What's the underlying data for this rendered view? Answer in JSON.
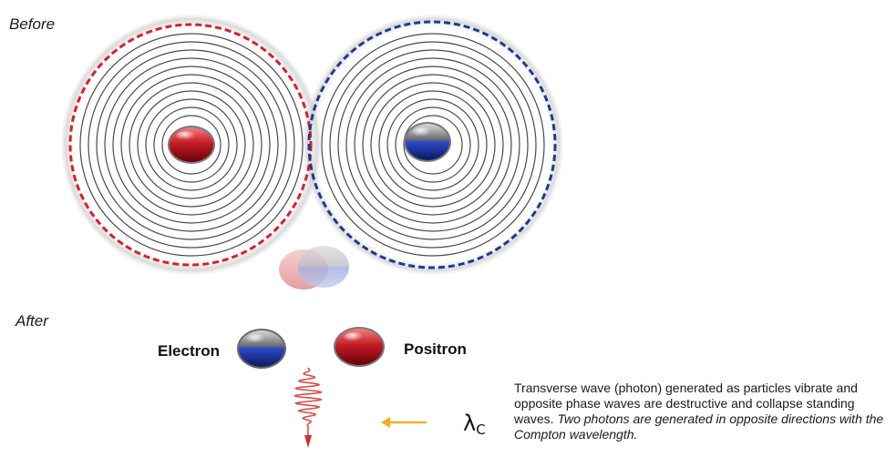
{
  "labels": {
    "before": "Before",
    "after": "After",
    "electron": "Electron",
    "positron": "Positron",
    "lambda_symbol": "λ",
    "lambda_subscript": "C"
  },
  "caption": {
    "plain": "Transverse wave (photon) generated as particles vibrate and opposite phase waves are destructive and collapse standing waves. ",
    "italic": "Two photons are generated in opposite directions with the Compton wavelength."
  },
  "colors": {
    "electron_red": "#c0202a",
    "positron_blue": "#1f3fa8",
    "wave_rings": "#4a4a4a",
    "arrow_orange": "#f0b020",
    "photon_red": "#d23030"
  }
}
